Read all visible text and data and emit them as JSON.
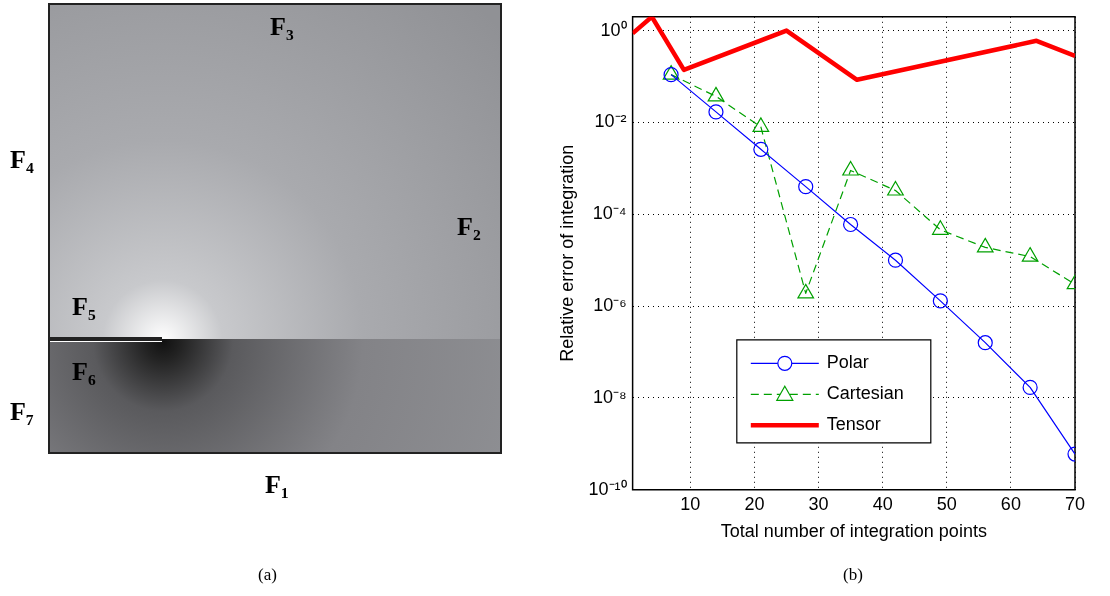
{
  "chart_data": [
    {
      "type": "other",
      "annotations": [
        "F₃",
        "F₄",
        "F₂",
        "F₅",
        "F₆",
        "F₇",
        "F₁",
        "(a)"
      ]
    },
    {
      "type": "line",
      "xlabel": "Total number of integration points",
      "ylabel": "Relative error of integration",
      "annotations": [
        "(b)"
      ],
      "log": "y",
      "xlim": [
        1,
        70
      ],
      "xticks": [
        10,
        20,
        30,
        40,
        50,
        60,
        70
      ],
      "ylim": [
        1e-10,
        2
      ],
      "yticks": [
        {
          "value": 1e-10,
          "label": "10⁻¹⁰"
        },
        {
          "value": 1e-08,
          "label": "10⁻⁸"
        },
        {
          "value": 1e-06,
          "label": "10⁻⁶"
        },
        {
          "value": 0.0001,
          "label": "10⁻⁴"
        },
        {
          "value": 0.01,
          "label": "10⁻²"
        },
        {
          "value": 1,
          "label": "10⁰"
        }
      ],
      "grid": true,
      "legend": "bottom",
      "series": [
        {
          "name": "Polar",
          "color": "#0000ff",
          "marker": "circle",
          "line_style": "solid",
          "x": [
            7,
            14,
            21,
            28,
            35,
            42,
            49,
            56,
            63,
            70
          ],
          "values": [
            0.11,
            0.017,
            0.0026,
            0.0004,
            6e-05,
            1e-05,
            1.3e-06,
            1.6e-07,
            1.7e-08,
            6e-10
          ]
        },
        {
          "name": "Cartesian",
          "color": "#00a000",
          "marker": "triangle",
          "line_style": "dashed",
          "x": [
            7,
            14,
            21,
            28,
            35,
            42,
            49,
            56,
            63,
            70
          ],
          "values": [
            0.11,
            0.037,
            0.008,
            1.9e-06,
            0.0009,
            0.00033,
            4.6e-05,
            1.9e-05,
            1.2e-05,
            3e-06
          ]
        },
        {
          "name": "Tensor",
          "color": "#ff0000",
          "marker": "none",
          "line_style": "solid",
          "x": [
            1,
            4,
            9,
            25,
            36,
            64,
            70
          ],
          "values": [
            0.87,
            2,
            0.14,
            1,
            0.085,
            0.6,
            0.28
          ]
        }
      ]
    }
  ]
}
